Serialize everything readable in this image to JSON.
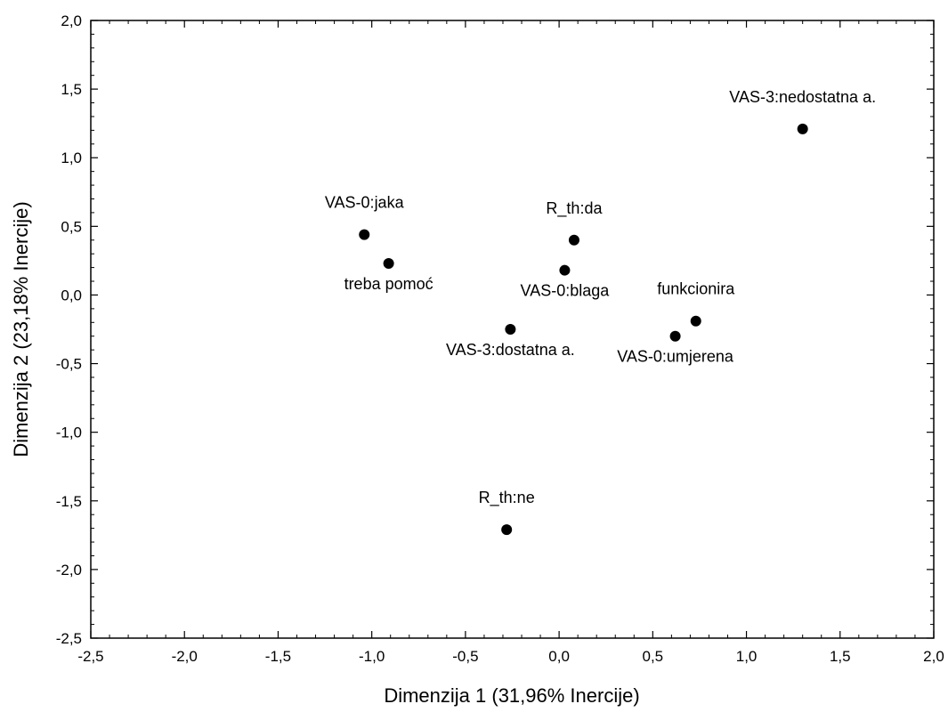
{
  "chart_data": {
    "type": "scatter",
    "title": "",
    "xlabel": "Dimenzija 1 (31,96% Inercije)",
    "ylabel": "Dimenzija 2 (23,18% Inercije)",
    "xlim": [
      -2.5,
      2.0
    ],
    "ylim": [
      -2.5,
      2.0
    ],
    "xticks": [
      -2.5,
      -2.0,
      -1.5,
      -1.0,
      -0.5,
      0.0,
      0.5,
      1.0,
      1.5,
      2.0
    ],
    "yticks": [
      -2.5,
      -2.0,
      -1.5,
      -1.0,
      -0.5,
      0.0,
      0.5,
      1.0,
      1.5,
      2.0
    ],
    "xtick_labels": [
      "-2,5",
      "-2,0",
      "-1,5",
      "-1,0",
      "-0,5",
      "0,0",
      "0,5",
      "1,0",
      "1,5",
      "2,0"
    ],
    "ytick_labels": [
      "-2,5",
      "-2,0",
      "-1,5",
      "-1,0",
      "-0,5",
      "0,0",
      "0,5",
      "1,0",
      "1,5",
      "2,0"
    ],
    "grid": false,
    "marker_color": "#000000",
    "points": [
      {
        "label": "VAS-3:nedostatna a.",
        "x": 1.3,
        "y": 1.21,
        "label_pos": "above"
      },
      {
        "label": "VAS-0:jaka",
        "x": -1.04,
        "y": 0.44,
        "label_pos": "above"
      },
      {
        "label": "treba pomoć",
        "x": -0.91,
        "y": 0.23,
        "label_pos": "below"
      },
      {
        "label": "R_th:da",
        "x": 0.08,
        "y": 0.4,
        "label_pos": "above"
      },
      {
        "label": "VAS-0:blaga",
        "x": 0.03,
        "y": 0.18,
        "label_pos": "below"
      },
      {
        "label": "VAS-3:dostatna a.",
        "x": -0.26,
        "y": -0.25,
        "label_pos": "below"
      },
      {
        "label": "funkcionira",
        "x": 0.73,
        "y": -0.19,
        "label_pos": "above"
      },
      {
        "label": "VAS-0:umjerena",
        "x": 0.62,
        "y": -0.3,
        "label_pos": "below"
      },
      {
        "label": "R_th:ne",
        "x": -0.28,
        "y": -1.71,
        "label_pos": "above"
      }
    ]
  }
}
